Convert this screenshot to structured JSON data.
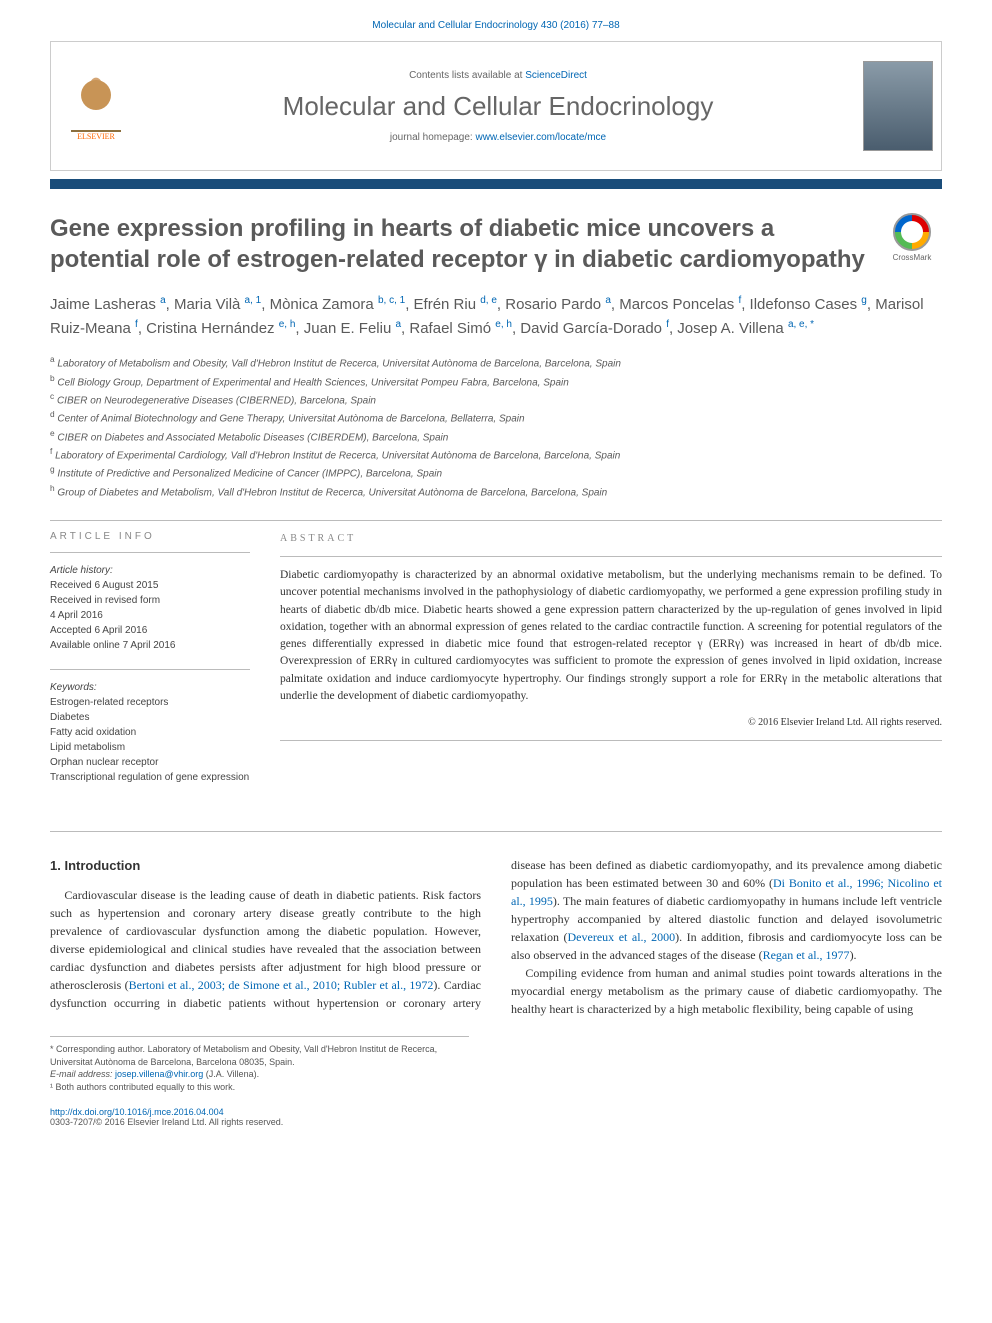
{
  "journal_ref": "Molecular and Cellular Endocrinology 430 (2016) 77–88",
  "header": {
    "contents_prefix": "Contents lists available at ",
    "contents_link": "ScienceDirect",
    "journal_name": "Molecular and Cellular Endocrinology",
    "homepage_prefix": "journal homepage: ",
    "homepage_link": "www.elsevier.com/locate/mce",
    "publisher": "ELSEVIER"
  },
  "crossmark_label": "CrossMark",
  "title": "Gene expression profiling in hearts of diabetic mice uncovers a potential role of estrogen-related receptor γ in diabetic cardiomyopathy",
  "authors_html": "Jaime Lasheras <sup>a</sup>, Maria Vilà <sup>a, 1</sup>, Mònica Zamora <sup>b, c, 1</sup>, Efrén Riu <sup>d, e</sup>, Rosario Pardo <sup>a</sup>, Marcos Poncelas <sup>f</sup>, Ildefonso Cases <sup>g</sup>, Marisol Ruiz-Meana <sup>f</sup>, Cristina Hernández <sup>e, h</sup>, Juan E. Feliu <sup>a</sup>, Rafael Simó <sup>e, h</sup>, David García-Dorado <sup>f</sup>, Josep A. Villena <sup>a, e, *</sup>",
  "affiliations": [
    {
      "key": "a",
      "text": "Laboratory of Metabolism and Obesity, Vall d'Hebron Institut de Recerca, Universitat Autònoma de Barcelona, Barcelona, Spain"
    },
    {
      "key": "b",
      "text": "Cell Biology Group, Department of Experimental and Health Sciences, Universitat Pompeu Fabra, Barcelona, Spain"
    },
    {
      "key": "c",
      "text": "CIBER on Neurodegenerative Diseases (CIBERNED), Barcelona, Spain"
    },
    {
      "key": "d",
      "text": "Center of Animal Biotechnology and Gene Therapy, Universitat Autònoma de Barcelona, Bellaterra, Spain"
    },
    {
      "key": "e",
      "text": "CIBER on Diabetes and Associated Metabolic Diseases (CIBERDEM), Barcelona, Spain"
    },
    {
      "key": "f",
      "text": "Laboratory of Experimental Cardiology, Vall d'Hebron Institut de Recerca, Universitat Autònoma de Barcelona, Barcelona, Spain"
    },
    {
      "key": "g",
      "text": "Institute of Predictive and Personalized Medicine of Cancer (IMPPC), Barcelona, Spain"
    },
    {
      "key": "h",
      "text": "Group of Diabetes and Metabolism, Vall d'Hebron Institut de Recerca, Universitat Autònoma de Barcelona, Barcelona, Spain"
    }
  ],
  "article_info": {
    "heading": "ARTICLE INFO",
    "history_label": "Article history:",
    "history": [
      "Received 6 August 2015",
      "Received in revised form",
      "4 April 2016",
      "Accepted 6 April 2016",
      "Available online 7 April 2016"
    ],
    "keywords_label": "Keywords:",
    "keywords": [
      "Estrogen-related receptors",
      "Diabetes",
      "Fatty acid oxidation",
      "Lipid metabolism",
      "Orphan nuclear receptor",
      "Transcriptional regulation of gene expression"
    ]
  },
  "abstract": {
    "heading": "ABSTRACT",
    "text": "Diabetic cardiomyopathy is characterized by an abnormal oxidative metabolism, but the underlying mechanisms remain to be defined. To uncover potential mechanisms involved in the pathophysiology of diabetic cardiomyopathy, we performed a gene expression profiling study in hearts of diabetic db/db mice. Diabetic hearts showed a gene expression pattern characterized by the up-regulation of genes involved in lipid oxidation, together with an abnormal expression of genes related to the cardiac contractile function. A screening for potential regulators of the genes differentially expressed in diabetic mice found that estrogen-related receptor γ (ERRγ) was increased in heart of db/db mice. Overexpression of ERRγ in cultured cardiomyocytes was sufficient to promote the expression of genes involved in lipid oxidation, increase palmitate oxidation and induce cardiomyocyte hypertrophy. Our findings strongly support a role for ERRγ in the metabolic alterations that underlie the development of diabetic cardiomyopathy.",
    "copyright": "© 2016 Elsevier Ireland Ltd. All rights reserved."
  },
  "body": {
    "section_heading": "1. Introduction",
    "col1_p1": "Cardiovascular disease is the leading cause of death in diabetic patients. Risk factors such as hypertension and coronary artery disease greatly contribute to the high prevalence of cardiovascular dysfunction among the diabetic population. However, diverse epidemiological and clinical studies have revealed that the association between cardiac dysfunction and diabetes persists after adjustment for high blood pressure or atherosclerosis (",
    "col1_link1": "Bertoni",
    "col2_link1": "et al., 2003; de Simone et al., 2010; Rubler et al., 1972",
    "col2_p1_after": "). Cardiac dysfunction occurring in diabetic patients without hypertension or coronary artery disease has been defined as diabetic cardiomyopathy, and its prevalence among diabetic population has been estimated between 30 and 60% (",
    "col2_link2": "Di Bonito et al., 1996; Nicolino et al., 1995",
    "col2_p1_after2": "). The main features of diabetic cardiomyopathy in humans include left ventricle hypertrophy accompanied by altered diastolic function and delayed isovolumetric relaxation (",
    "col2_link3": "Devereux et al., 2000",
    "col2_p1_after3": "). In addition, fibrosis and cardiomyocyte loss can be also observed in the advanced stages of the disease (",
    "col2_link4": "Regan et al., 1977",
    "col2_p1_after4": ").",
    "col2_p2": "Compiling evidence from human and animal studies point towards alterations in the myocardial energy metabolism as the primary cause of diabetic cardiomyopathy. The healthy heart is characterized by a high metabolic flexibility, being capable of using"
  },
  "footnotes": {
    "corr": "* Corresponding author. Laboratory of Metabolism and Obesity, Vall d'Hebron Institut de Recerca, Universitat Autònoma de Barcelona, Barcelona 08035, Spain.",
    "email_label": "E-mail address: ",
    "email": "josep.villena@vhir.org",
    "email_suffix": " (J.A. Villena).",
    "contrib": "¹ Both authors contributed equally to this work."
  },
  "footer": {
    "doi": "http://dx.doi.org/10.1016/j.mce.2016.04.004",
    "issn_copyright": "0303-7207/© 2016 Elsevier Ireland Ltd. All rights reserved."
  },
  "colors": {
    "link": "#0066b3",
    "bar": "#1a4d7a",
    "title_text": "#5a5a5a",
    "elsevier_orange": "#ff6600"
  }
}
